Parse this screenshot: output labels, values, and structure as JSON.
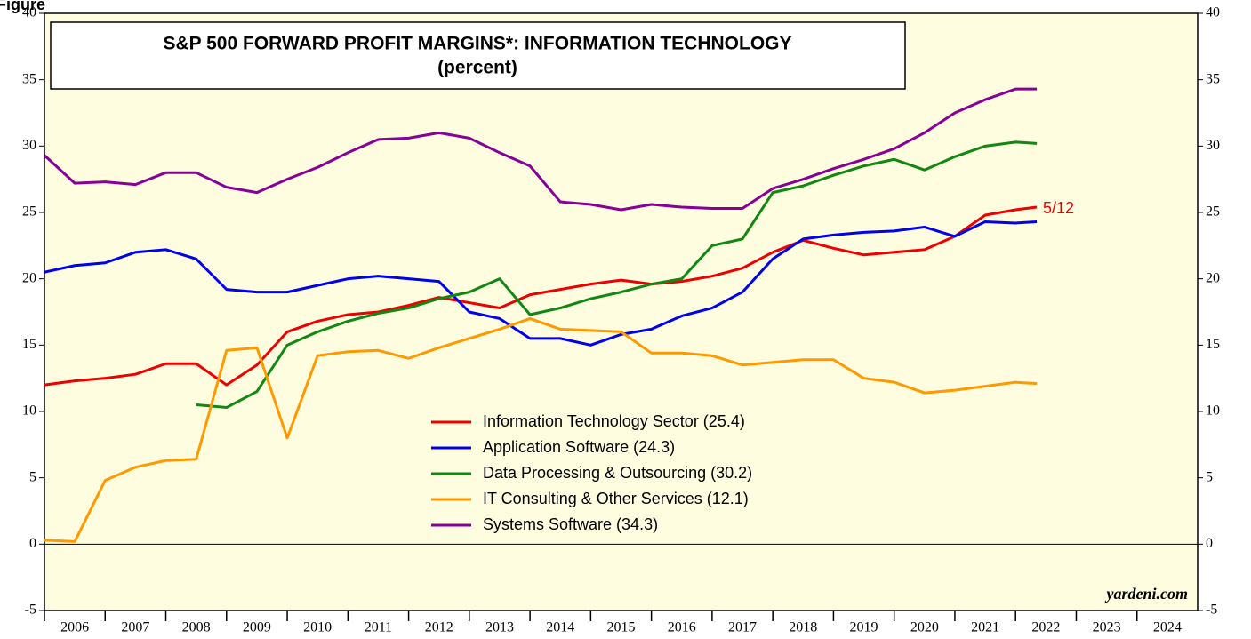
{
  "chart_data": {
    "type": "line",
    "figure_label": "Figure",
    "title": "S&P 500 FORWARD PROFIT MARGINS*: INFORMATION TECHNOLOGY",
    "subtitle": "(percent)",
    "annotations": [
      "5/12",
      "yardeni.com"
    ],
    "x": [
      2006,
      2006.5,
      2007,
      2007.5,
      2008,
      2008.5,
      2009,
      2009.5,
      2010,
      2010.5,
      2011,
      2011.5,
      2012,
      2012.5,
      2013,
      2013.5,
      2014,
      2014.5,
      2015,
      2015.5,
      2016,
      2016.5,
      2017,
      2017.5,
      2018,
      2018.5,
      2019,
      2019.5,
      2020,
      2020.5,
      2021,
      2021.5,
      2022,
      2022.35
    ],
    "xlim": [
      2006,
      2025
    ],
    "xticks": [
      2006,
      2007,
      2008,
      2009,
      2010,
      2011,
      2012,
      2013,
      2014,
      2015,
      2016,
      2017,
      2018,
      2019,
      2020,
      2021,
      2022,
      2023,
      2024
    ],
    "ylim": [
      -5,
      40
    ],
    "yticks": [
      -5,
      0,
      5,
      10,
      15,
      20,
      25,
      30,
      35,
      40
    ],
    "y2lim": [
      -5,
      40
    ],
    "y2ticks": [
      -5,
      0,
      5,
      10,
      15,
      20,
      25,
      30,
      35,
      40
    ],
    "grid": false,
    "series": [
      {
        "name": "Information Technology Sector (25.4)",
        "color": "#ee0000",
        "values": [
          12,
          12.3,
          12.5,
          12.8,
          13.6,
          13.6,
          12.0,
          13.5,
          16,
          16.8,
          17.3,
          17.5,
          18,
          18.6,
          18.2,
          17.8,
          18.8,
          19.2,
          19.6,
          19.9,
          19.6,
          19.8,
          20.2,
          20.8,
          22.0,
          22.9,
          22.3,
          21.8,
          22,
          22.2,
          23.2,
          24.8,
          25.2,
          25.4
        ]
      },
      {
        "name": "Application Software (24.3)",
        "color": "#0000ee",
        "values": [
          20.5,
          21,
          21.2,
          22,
          22.2,
          21.5,
          19.2,
          19.0,
          19.0,
          19.5,
          20,
          20.2,
          20,
          19.8,
          17.5,
          17,
          15.5,
          15.5,
          15,
          15.8,
          16.2,
          17.2,
          17.8,
          19,
          21.5,
          23,
          23.3,
          23.5,
          23.6,
          23.9,
          23.2,
          24.3,
          24.2,
          24.3
        ]
      },
      {
        "name": "Data Processing & Outsourcing (30.2)",
        "color": "#118811",
        "values": [
          null,
          null,
          null,
          null,
          null,
          10.5,
          10.3,
          11.5,
          15,
          16,
          16.8,
          17.4,
          17.8,
          18.5,
          19,
          20,
          17.3,
          17.8,
          18.5,
          19,
          19.6,
          20,
          22.5,
          23,
          26.5,
          27,
          27.8,
          28.5,
          29,
          28.2,
          29.2,
          30,
          30.3,
          30.2
        ]
      },
      {
        "name": "IT Consulting & Other Services (12.1)",
        "color": "#ff9900",
        "values": [
          0.3,
          0.2,
          4.8,
          5.8,
          6.3,
          6.4,
          14.6,
          14.8,
          8.0,
          14.2,
          14.5,
          14.6,
          14.0,
          14.8,
          15.5,
          16.2,
          17,
          16.2,
          16.1,
          16.0,
          14.4,
          14.4,
          14.2,
          13.5,
          13.7,
          13.9,
          13.9,
          12.5,
          12.2,
          11.4,
          11.6,
          11.9,
          12.2,
          12.1
        ]
      },
      {
        "name": "Systems Software (34.3)",
        "color": "#880099",
        "values": [
          29.3,
          27.2,
          27.3,
          27.1,
          28,
          28.0,
          26.9,
          26.5,
          27.5,
          28.4,
          29.5,
          30.5,
          30.6,
          31,
          30.6,
          29.5,
          28.5,
          25.8,
          25.6,
          25.2,
          25.6,
          25.4,
          25.3,
          25.3,
          26.8,
          27.5,
          28.3,
          29,
          29.8,
          31,
          32.5,
          33.5,
          34.3,
          34.3
        ]
      }
    ]
  }
}
